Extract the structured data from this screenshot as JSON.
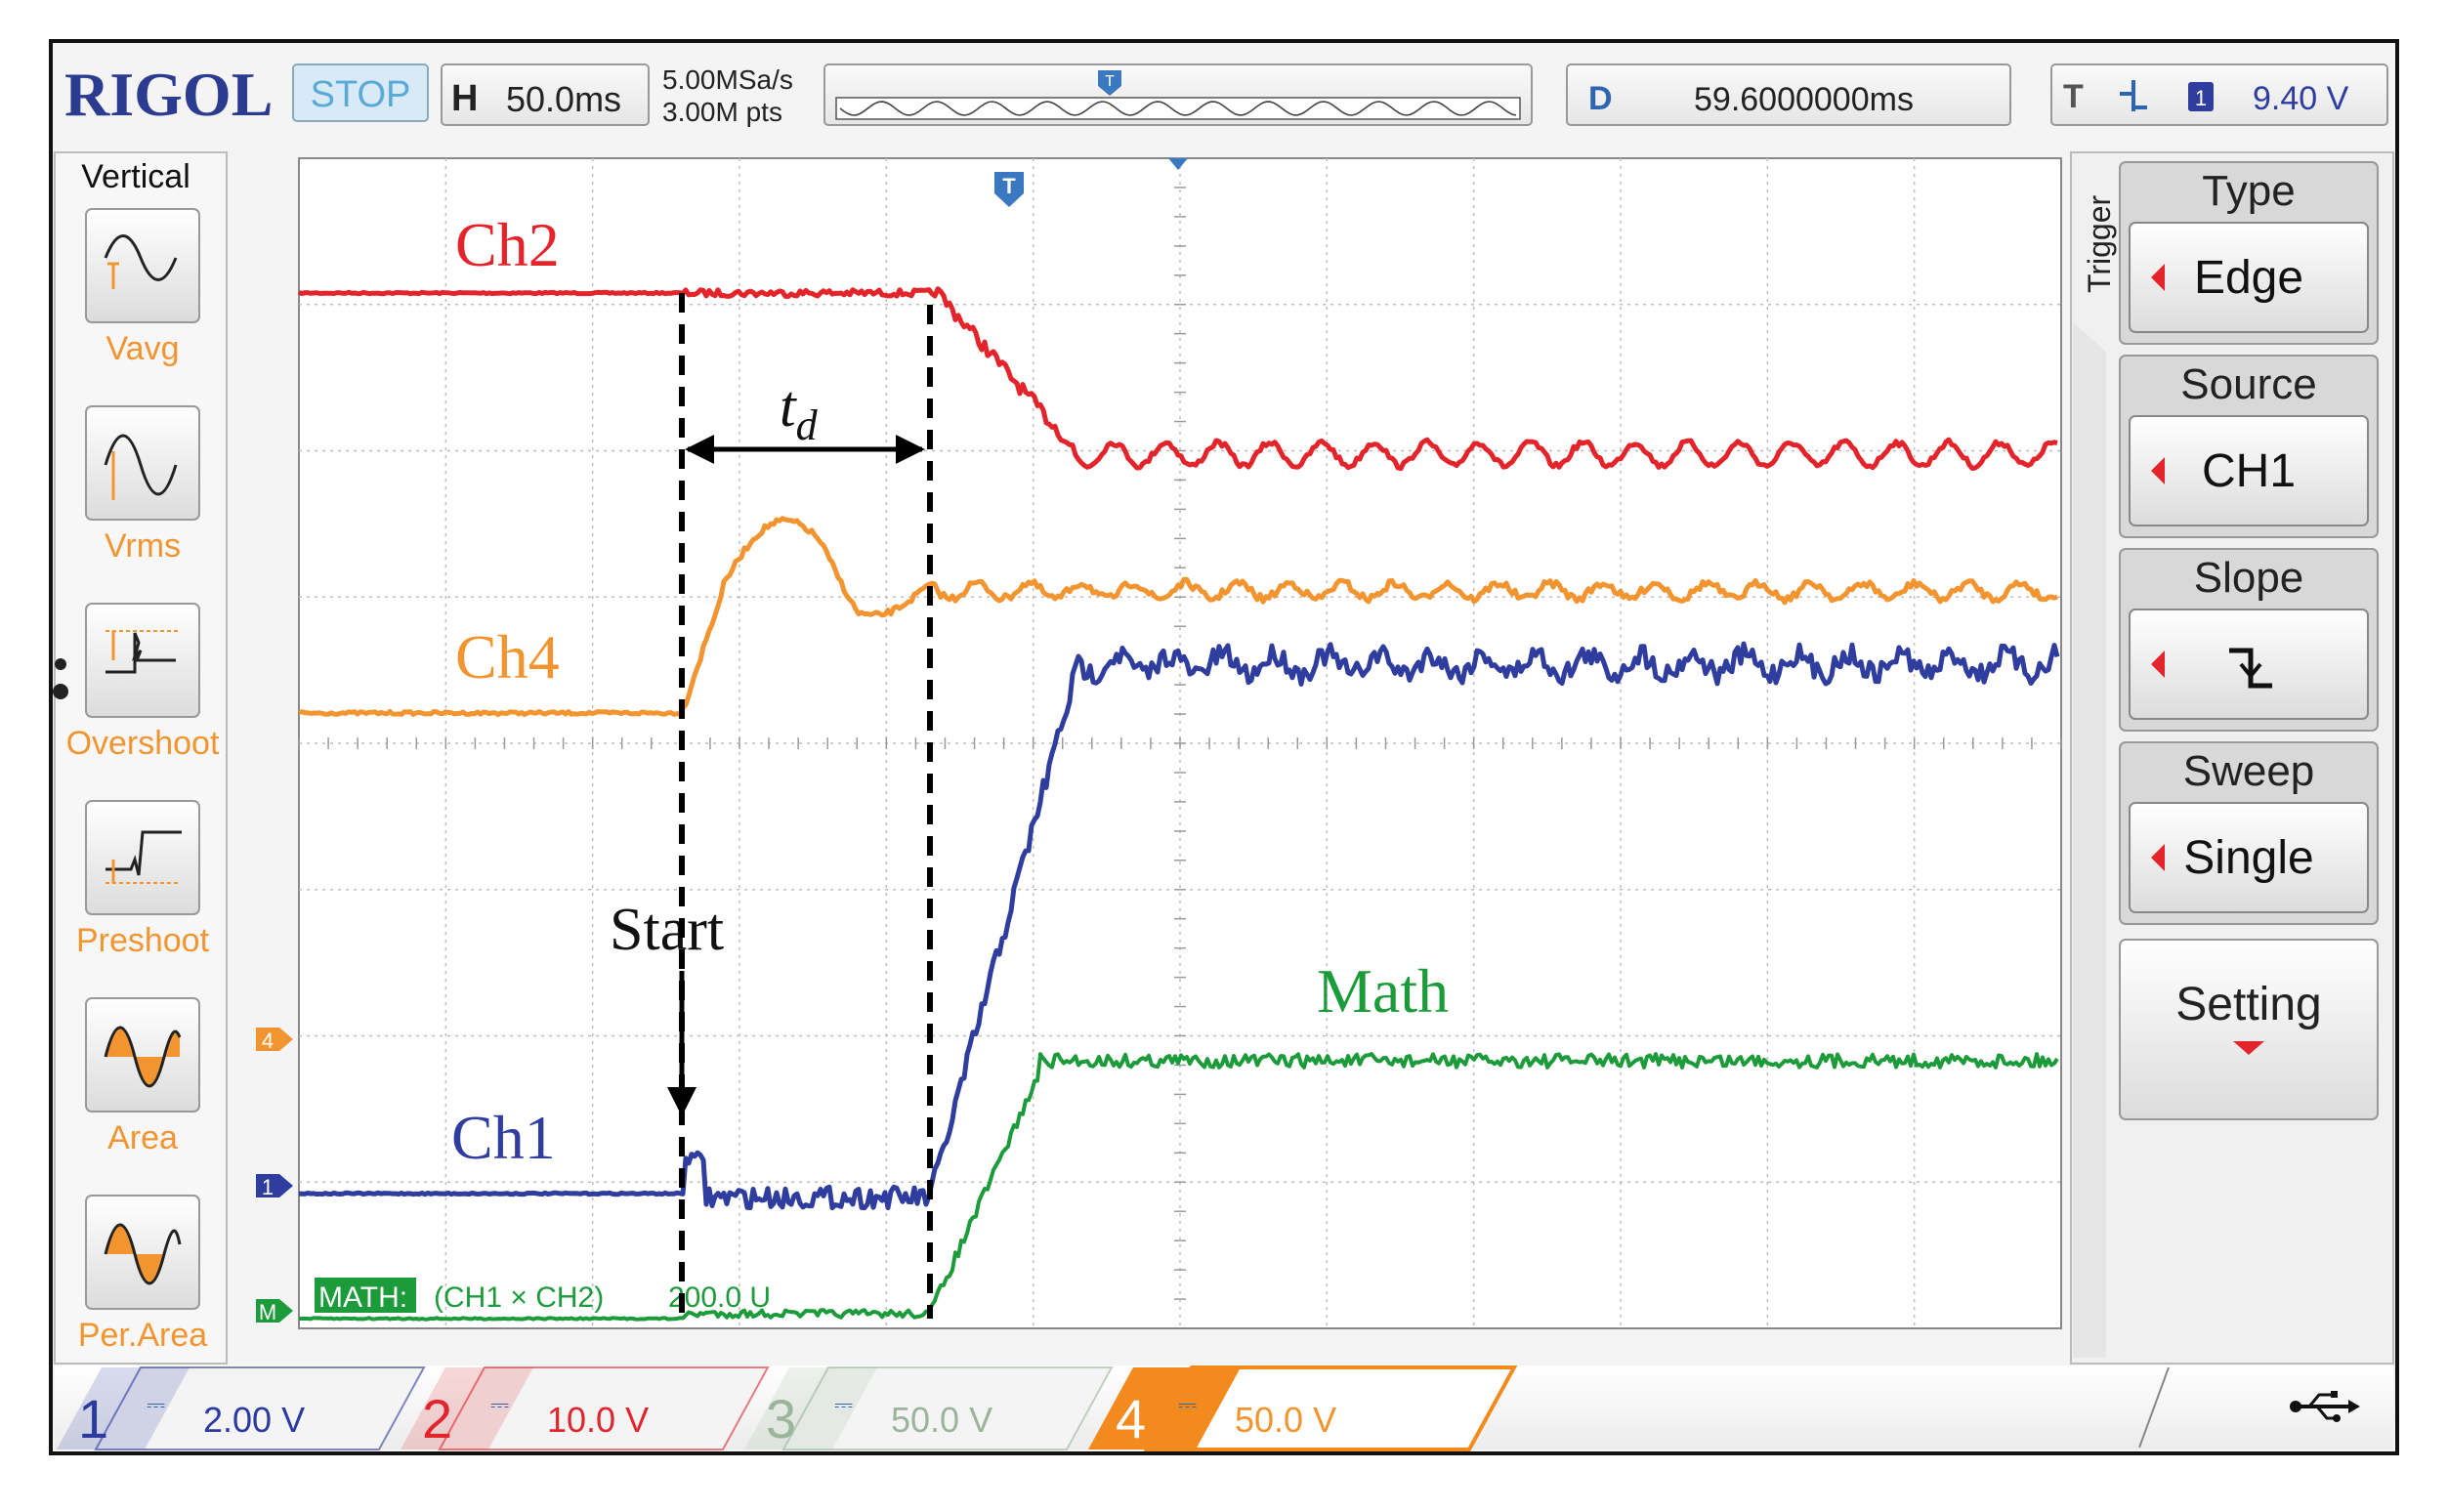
{
  "header": {
    "brand": "RIGOL",
    "run_state": "STOP",
    "horizontal": {
      "key": "H",
      "value": "50.0ms"
    },
    "sample_rate": "5.00MSa/s",
    "memory_depth": "3.00M pts",
    "delay": {
      "key": "D",
      "value": "59.6000000ms"
    },
    "trigger": {
      "key": "T",
      "channel": "1",
      "level": "9.40 V"
    }
  },
  "left_menu": {
    "title": "Vertical",
    "items": [
      {
        "label": "Vavg",
        "icon": "sine-average-icon"
      },
      {
        "label": "Vrms",
        "icon": "sine-rms-icon"
      },
      {
        "label": "Overshoot",
        "icon": "overshoot-icon"
      },
      {
        "label": "Preshoot",
        "icon": "preshoot-icon"
      },
      {
        "label": "Area",
        "icon": "area-icon"
      },
      {
        "label": "Per.Area",
        "icon": "period-area-icon"
      }
    ]
  },
  "right_menu": {
    "title": "Trigger",
    "items": [
      {
        "label": "Type",
        "value": "Edge"
      },
      {
        "label": "Source",
        "value": "CH1"
      },
      {
        "label": "Slope",
        "value": "",
        "icon": "falling-edge-icon"
      },
      {
        "label": "Sweep",
        "value": "Single"
      },
      {
        "label": "Setting",
        "value": ""
      }
    ]
  },
  "annotations": {
    "ch2": "Ch2",
    "ch4": "Ch4",
    "ch1": "Ch1",
    "math": "Math",
    "start": "Start",
    "td_main": "t",
    "td_sub": "d"
  },
  "markers": {
    "ch4": "4",
    "ch1": "1",
    "math": "M",
    "trigger_top": "T",
    "trigger_right": "T"
  },
  "math_label": {
    "tag": "MATH:",
    "expr": "(CH1 × CH2)",
    "scale": "200.0 U"
  },
  "bottom_bar": {
    "channels": [
      {
        "num": "1",
        "coupling": "⎓",
        "scale": "2.00 V",
        "color": "#2b3a9e",
        "active": false
      },
      {
        "num": "2",
        "coupling": "⎓",
        "scale": "10.0 V",
        "color": "#e0262c",
        "active": false
      },
      {
        "num": "3",
        "coupling": "⎓",
        "scale": "50.0 V",
        "color": "#9bb59b",
        "active": false
      },
      {
        "num": "4",
        "coupling": "⎓",
        "scale": "50.0 V",
        "color": "#f28a1e",
        "active": true
      }
    ],
    "usb_icon": "usb-icon"
  },
  "colors": {
    "ch1": "#2e3d9e",
    "ch2": "#e3252b",
    "ch4": "#f29530",
    "math": "#1c9b3a",
    "grid": "#b5b5b5",
    "brand": "#2b3b8f"
  }
}
